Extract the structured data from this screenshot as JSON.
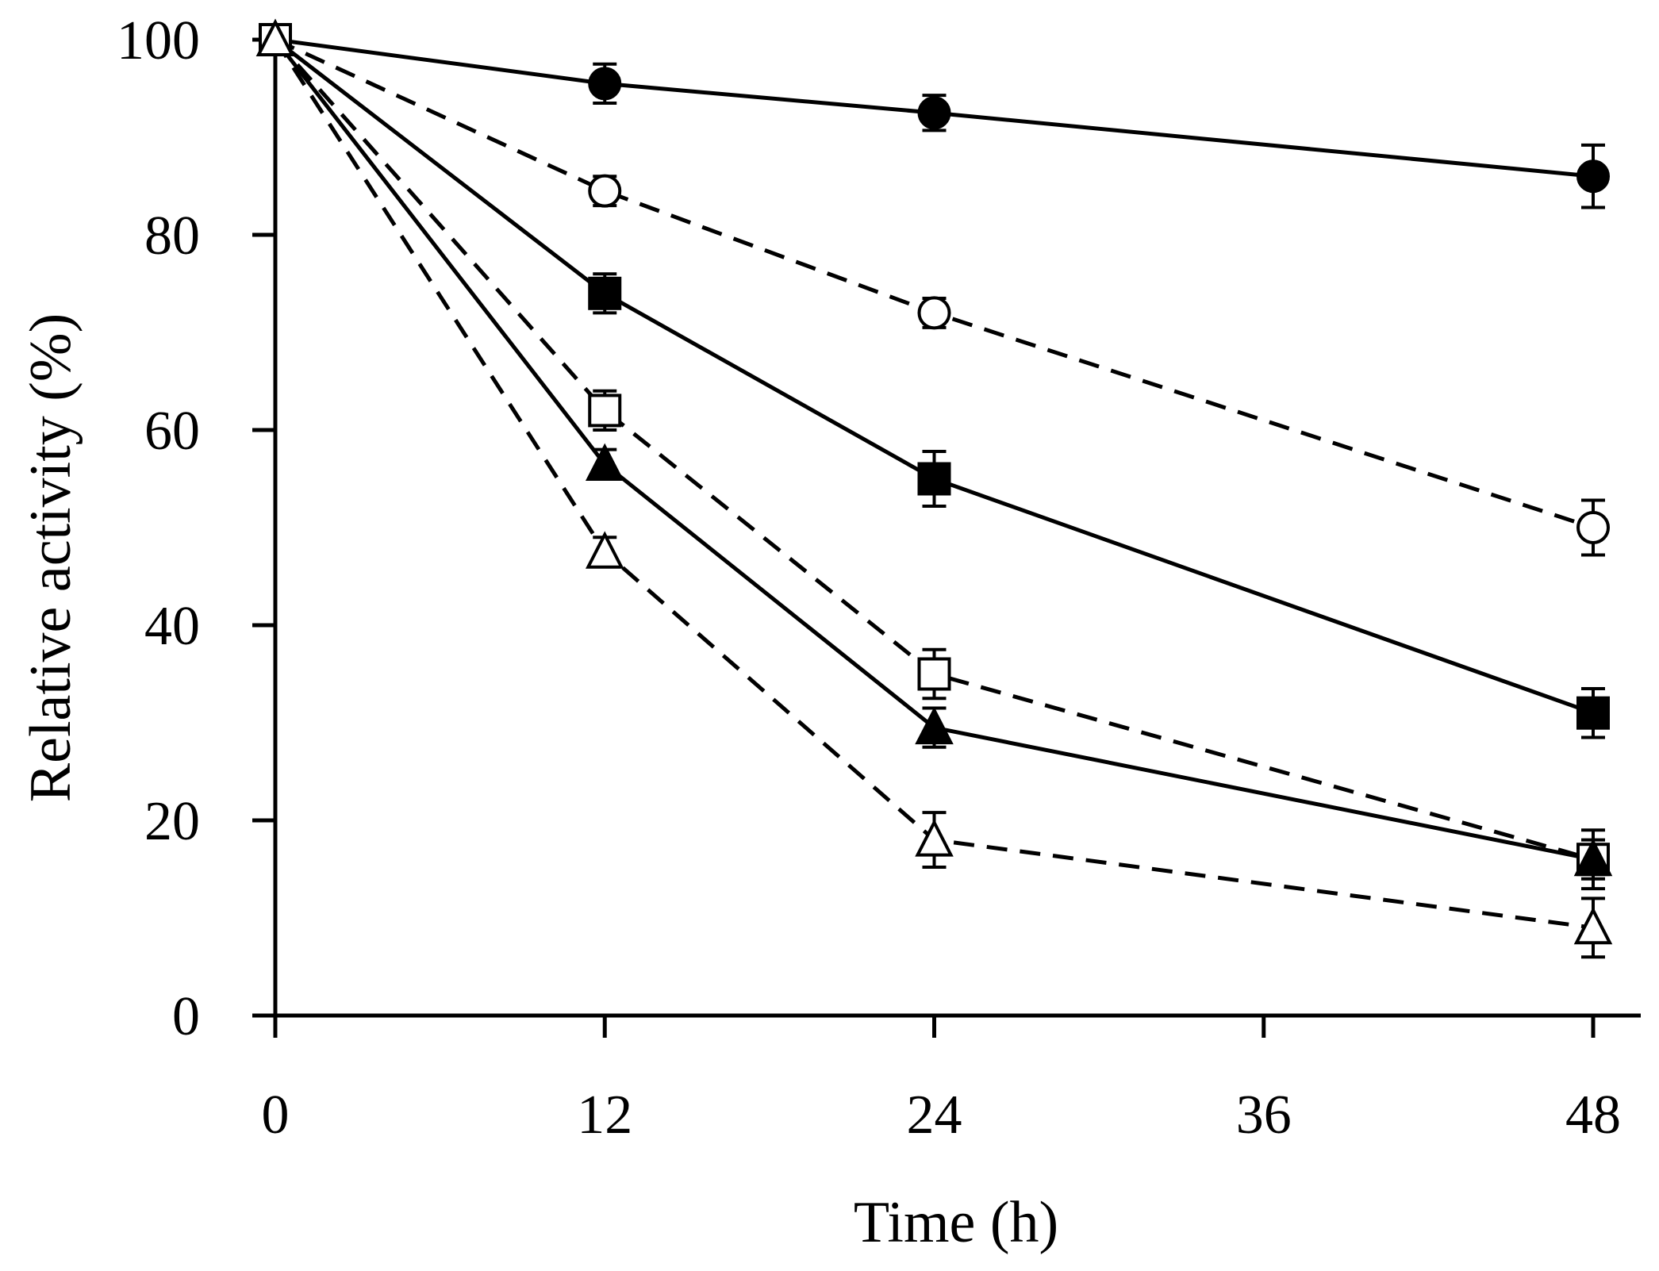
{
  "chart_data": {
    "type": "line",
    "title": "",
    "xlabel": "Time (h)",
    "ylabel": "Relative activity (%)",
    "xlim": [
      0,
      50
    ],
    "ylim": [
      0,
      100
    ],
    "xticks": [
      0,
      12,
      24,
      36,
      48
    ],
    "yticks": [
      0,
      20,
      40,
      60,
      80,
      100
    ],
    "x": [
      0,
      12,
      24,
      48
    ],
    "grid": false,
    "legend": "none",
    "series": [
      {
        "name": "filled circle (solid)",
        "marker": "circle",
        "filled": true,
        "dashed": false,
        "values": [
          100,
          95.5,
          92.5,
          86
        ],
        "errors": [
          0,
          2.0,
          1.8,
          3.2
        ]
      },
      {
        "name": "open circle (dashed)",
        "marker": "circle",
        "filled": false,
        "dashed": true,
        "values": [
          100,
          84.5,
          72,
          50
        ],
        "errors": [
          0,
          1.5,
          1.5,
          2.8
        ]
      },
      {
        "name": "filled square (solid)",
        "marker": "square",
        "filled": true,
        "dashed": false,
        "values": [
          100,
          74,
          55,
          31
        ],
        "errors": [
          0,
          2.0,
          2.8,
          2.5
        ]
      },
      {
        "name": "open square (dashed)",
        "marker": "square",
        "filled": false,
        "dashed": true,
        "values": [
          100,
          62,
          35,
          16
        ],
        "errors": [
          0,
          2.0,
          2.5,
          3.0
        ]
      },
      {
        "name": "filled triangle (solid)",
        "marker": "triangle",
        "filled": true,
        "dashed": false,
        "values": [
          100,
          56.5,
          29.5,
          16
        ],
        "errors": [
          0,
          1.5,
          2.0,
          2.0
        ]
      },
      {
        "name": "open triangle (dashed)",
        "marker": "triangle",
        "filled": false,
        "dashed": true,
        "values": [
          100,
          47.5,
          18,
          9
        ],
        "errors": [
          0,
          1.5,
          2.8,
          3.0
        ]
      }
    ]
  }
}
